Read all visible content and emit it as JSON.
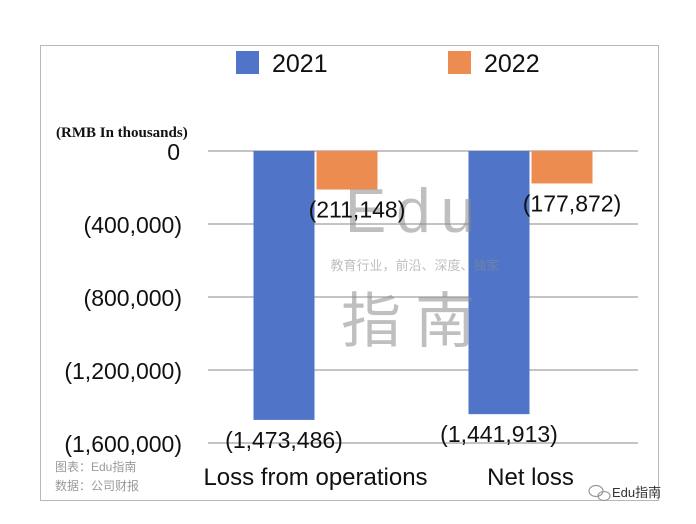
{
  "chart_data": {
    "type": "bar",
    "unit_label": "(RMB In thousands)",
    "categories": [
      "Loss from operations",
      "Net loss"
    ],
    "series": [
      {
        "name": "2021",
        "color": "#4f74c8",
        "values": [
          -1473486,
          -1441913
        ],
        "labels": [
          "(1,473,486)",
          "(1,441,913)"
        ]
      },
      {
        "name": "2022",
        "color": "#ed8c50",
        "values": [
          -211148,
          -177872
        ],
        "labels": [
          "(211,148)",
          "(177,872)"
        ]
      }
    ],
    "ylim": [
      -1600000,
      0
    ],
    "yticks": [
      {
        "value": 0,
        "label": "0"
      },
      {
        "value": -400000,
        "label": "(400,000)"
      },
      {
        "value": -800000,
        "label": "(800,000)"
      },
      {
        "value": -1200000,
        "label": "(1,200,000)"
      },
      {
        "value": -1600000,
        "label": "(1,600,000)"
      }
    ],
    "grid": true,
    "legend": "top"
  },
  "watermark": {
    "brand": "Edu",
    "tagline": "教育行业，前沿、深度、独家",
    "name": "指南"
  },
  "footer": {
    "chart_source": "图表：Edu指南",
    "data_source": "数据：公司财报",
    "account": "Edu指南"
  }
}
